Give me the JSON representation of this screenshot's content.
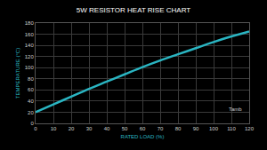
{
  "chart_data": {
    "type": "line",
    "title": "5W RESISTOR HEAT RISE CHART",
    "x_label": "RATED LOAD (%)",
    "y_label": "TEMPERATURE (°C)",
    "x": [
      0,
      10,
      20,
      30,
      40,
      50,
      60,
      70,
      80,
      90,
      100,
      110,
      120
    ],
    "values": [
      20,
      34,
      48,
      62,
      75,
      88,
      101,
      113,
      124,
      135,
      146,
      156,
      165
    ],
    "color": "#2ab5c2",
    "xlim": [
      0,
      120
    ],
    "xticks": [
      0,
      10,
      20,
      30,
      40,
      50,
      60,
      70,
      80,
      90,
      100,
      110,
      120
    ],
    "ylim": [
      0,
      180
    ],
    "yticks": [
      0,
      20,
      40,
      60,
      80,
      100,
      120,
      140,
      160,
      180
    ],
    "grid": true,
    "annotations": [
      {
        "text": "Tamb",
        "x": 112,
        "y": 25
      }
    ]
  }
}
